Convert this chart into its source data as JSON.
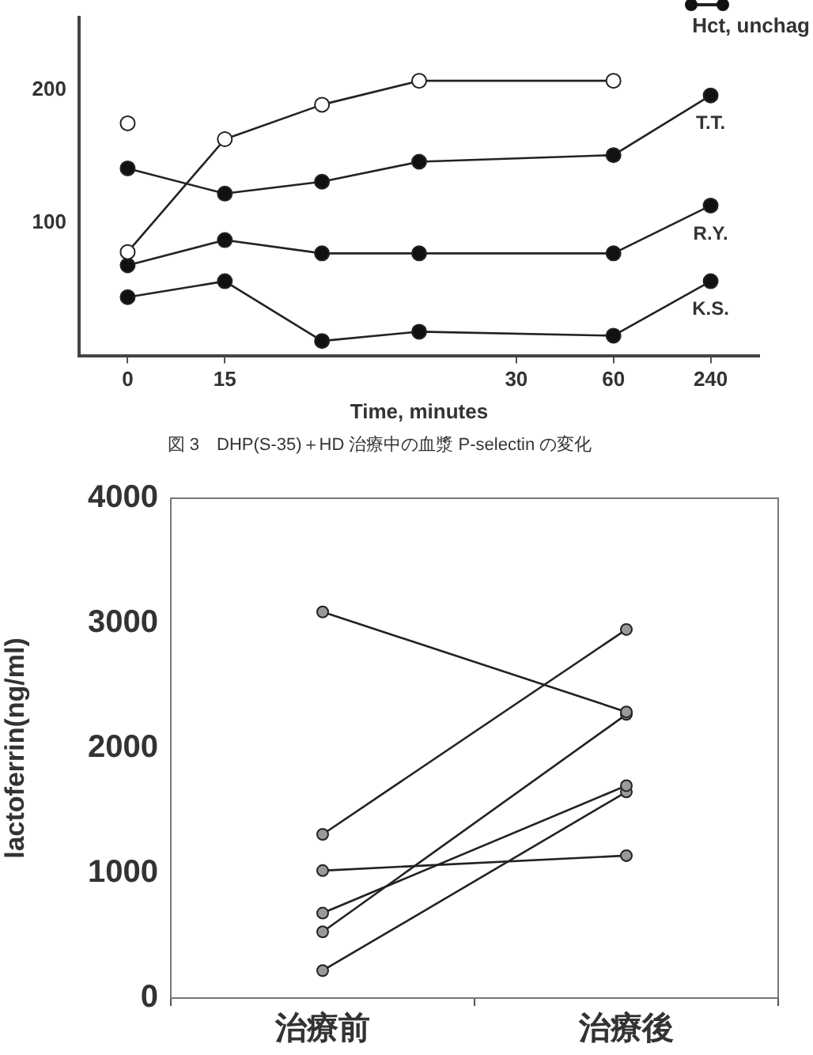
{
  "chart_data": [
    {
      "type": "line",
      "title": "図 3　DHP(S-35)＋HD 治療中の血漿 P-selectin の変化",
      "xlabel": "Time, minutes",
      "categories": [
        "0",
        "15",
        null,
        null,
        "30",
        "60",
        "240"
      ],
      "marker": "circle",
      "ylim": [
        0,
        255
      ],
      "yticks": [
        100,
        200
      ],
      "annotations": [
        "Hct, unchag"
      ],
      "series": [
        {
          "color": "#ffffff",
          "values": [
            175,
            null,
            null,
            null,
            null,
            null,
            null
          ]
        },
        {
          "color": "#ffffff",
          "values": [
            78,
            163,
            189,
            207,
            null,
            207,
            null
          ]
        },
        {
          "name": "T.T.",
          "color": "#111111",
          "values": [
            141,
            122,
            131,
            146,
            null,
            151,
            196
          ]
        },
        {
          "name": "R.Y.",
          "color": "#111111",
          "values": [
            68,
            87,
            77,
            77,
            null,
            77,
            113
          ]
        },
        {
          "name": "K.S.",
          "color": "#111111",
          "values": [
            44,
            56,
            11,
            18,
            null,
            15,
            56
          ]
        }
      ]
    },
    {
      "type": "line",
      "ylabel": "lactoferrin(ng/ml)",
      "categories": [
        "治療前",
        "治療後"
      ],
      "marker": "circle",
      "ylim": [
        0,
        4000
      ],
      "yticks": [
        0,
        1000,
        2000,
        3000,
        4000
      ],
      "series": [
        {
          "color": "#999999",
          "values": [
            3090,
            2290
          ]
        },
        {
          "color": "#999999",
          "values": [
            1310,
            2950
          ]
        },
        {
          "color": "#999999",
          "values": [
            1020,
            1140
          ]
        },
        {
          "color": "#999999",
          "values": [
            680,
            1700
          ]
        },
        {
          "color": "#999999",
          "values": [
            530,
            2270
          ]
        },
        {
          "color": "#999999",
          "values": [
            220,
            1650
          ]
        }
      ]
    }
  ]
}
